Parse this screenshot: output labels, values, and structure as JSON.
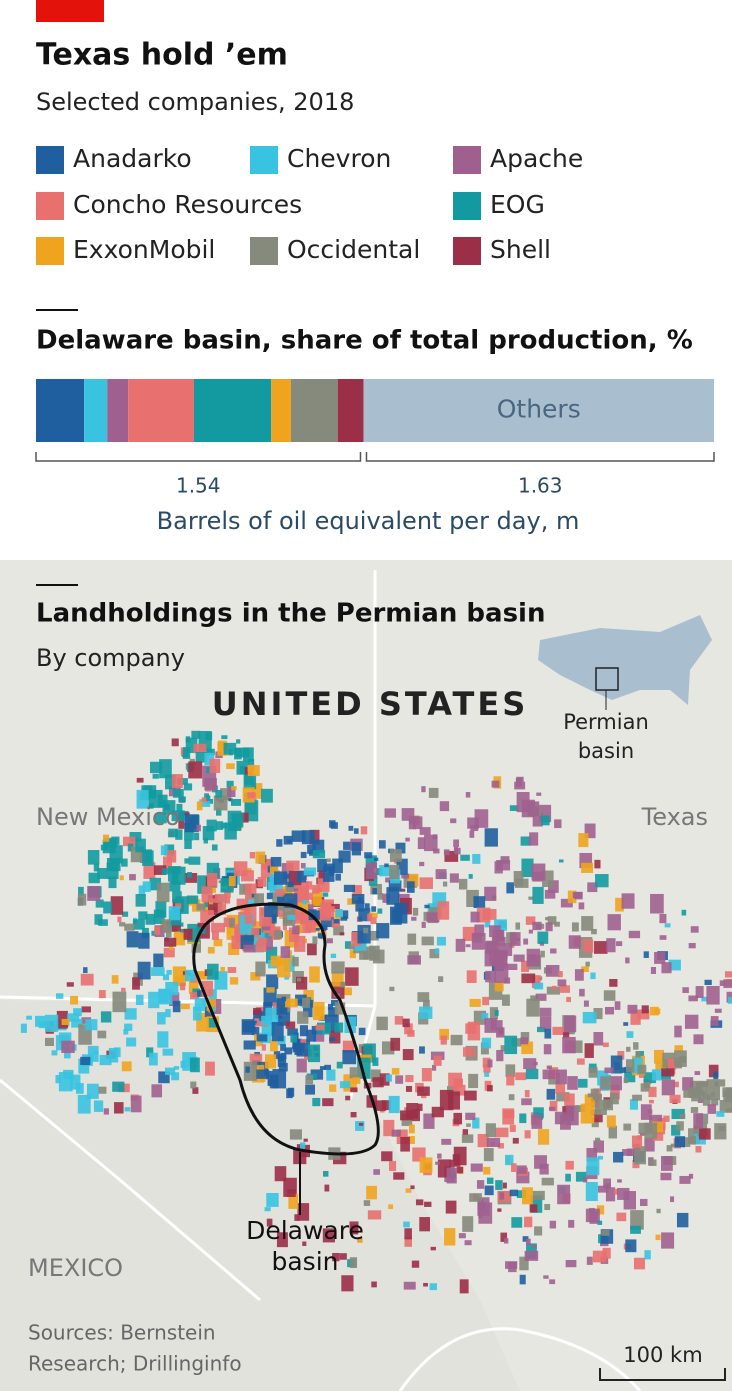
{
  "header": {
    "title": "Texas hold ’em",
    "subtitle": "Selected companies, 2018"
  },
  "chart_data": {
    "type": "bar",
    "title": "Delaware basin, share of total production, %",
    "series": [
      {
        "name": "Anadarko",
        "color": "#1f5fa0",
        "values": [
          7.1
        ]
      },
      {
        "name": "Chevron",
        "color": "#38c3e0",
        "values": [
          3.4
        ]
      },
      {
        "name": "Apache",
        "color": "#a0608f",
        "values": [
          3.1
        ]
      },
      {
        "name": "Concho Resources",
        "color": "#e8706f",
        "values": [
          9.7
        ]
      },
      {
        "name": "EOG",
        "color": "#129aa0",
        "values": [
          11.4
        ]
      },
      {
        "name": "ExxonMobil",
        "color": "#f0a41e",
        "values": [
          2.9
        ]
      },
      {
        "name": "Occidental",
        "color": "#858a7c",
        "values": [
          6.9
        ]
      },
      {
        "name": "Shell",
        "color": "#9c2f48",
        "values": [
          3.8
        ]
      },
      {
        "name": "Others",
        "color": "#a9bfcf",
        "values": [
          51.7
        ]
      }
    ],
    "xlim": [
      0,
      100
    ],
    "group_totals": [
      1.54,
      1.63
    ],
    "x_label": "Barrels of oil equivalent per day, m"
  },
  "map": {
    "title": "Landholdings in the Permian basin",
    "subtitle": "By company",
    "country": "UNITED STATES",
    "inset_label": [
      "Permian",
      "basin"
    ],
    "state_left": "New Mexico",
    "state_right": "Texas",
    "basin_label": [
      "Delaware",
      "basin"
    ],
    "mexico": "MEXICO",
    "sources": [
      "Sources: Bernstein",
      "Research; Drillinginfo"
    ],
    "scale": "100 km"
  }
}
